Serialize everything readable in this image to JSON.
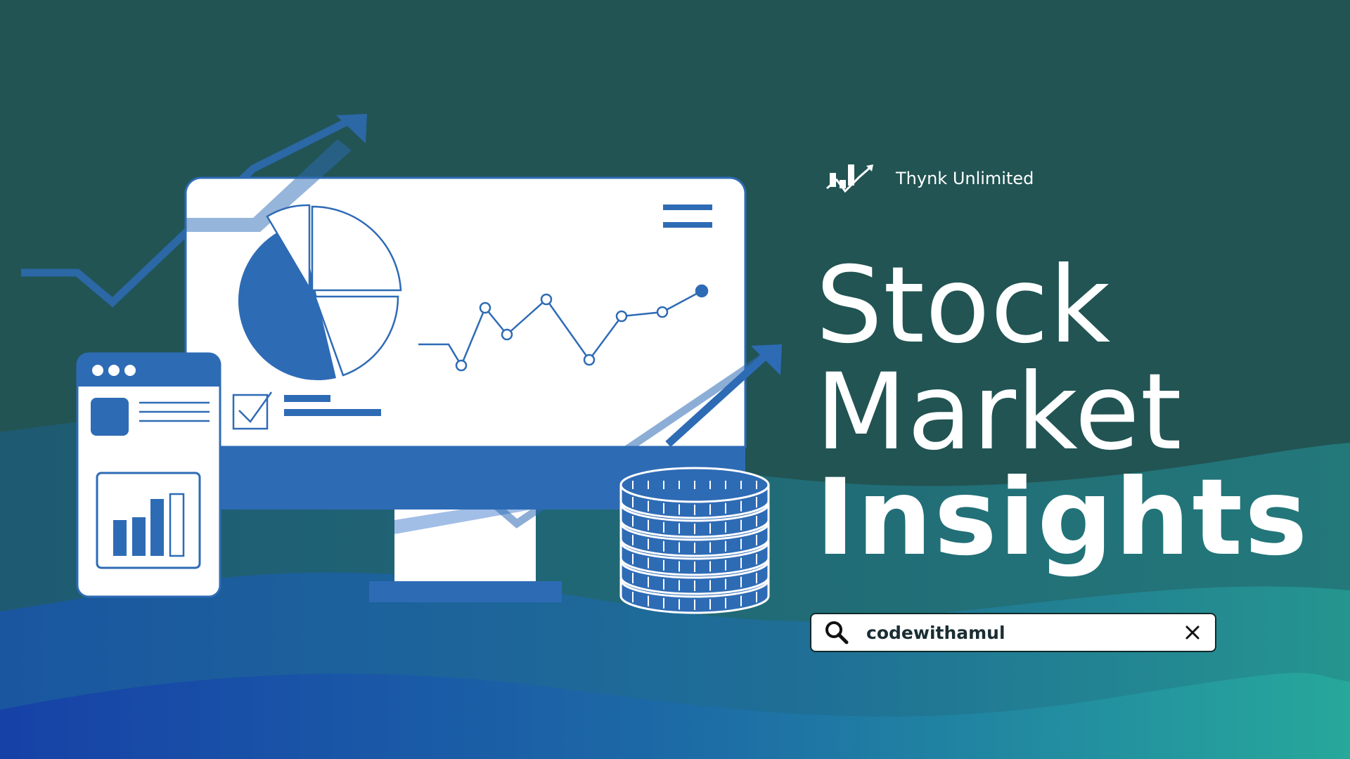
{
  "brand": {
    "name": "Thynk Unlimited",
    "icon": "bar-chart-arrow-logo"
  },
  "title": {
    "line1": "Stock",
    "line2": "Market",
    "line3": "Insights"
  },
  "search": {
    "value": "codewithamul",
    "icon": "search-icon",
    "clear_icon": "close-icon"
  },
  "colors": {
    "background": "#215453",
    "accent_blue": "#2e6bb5",
    "white": "#ffffff",
    "wave_teal": "#26a59a",
    "wave_deep_blue": "#1a4fa0"
  }
}
